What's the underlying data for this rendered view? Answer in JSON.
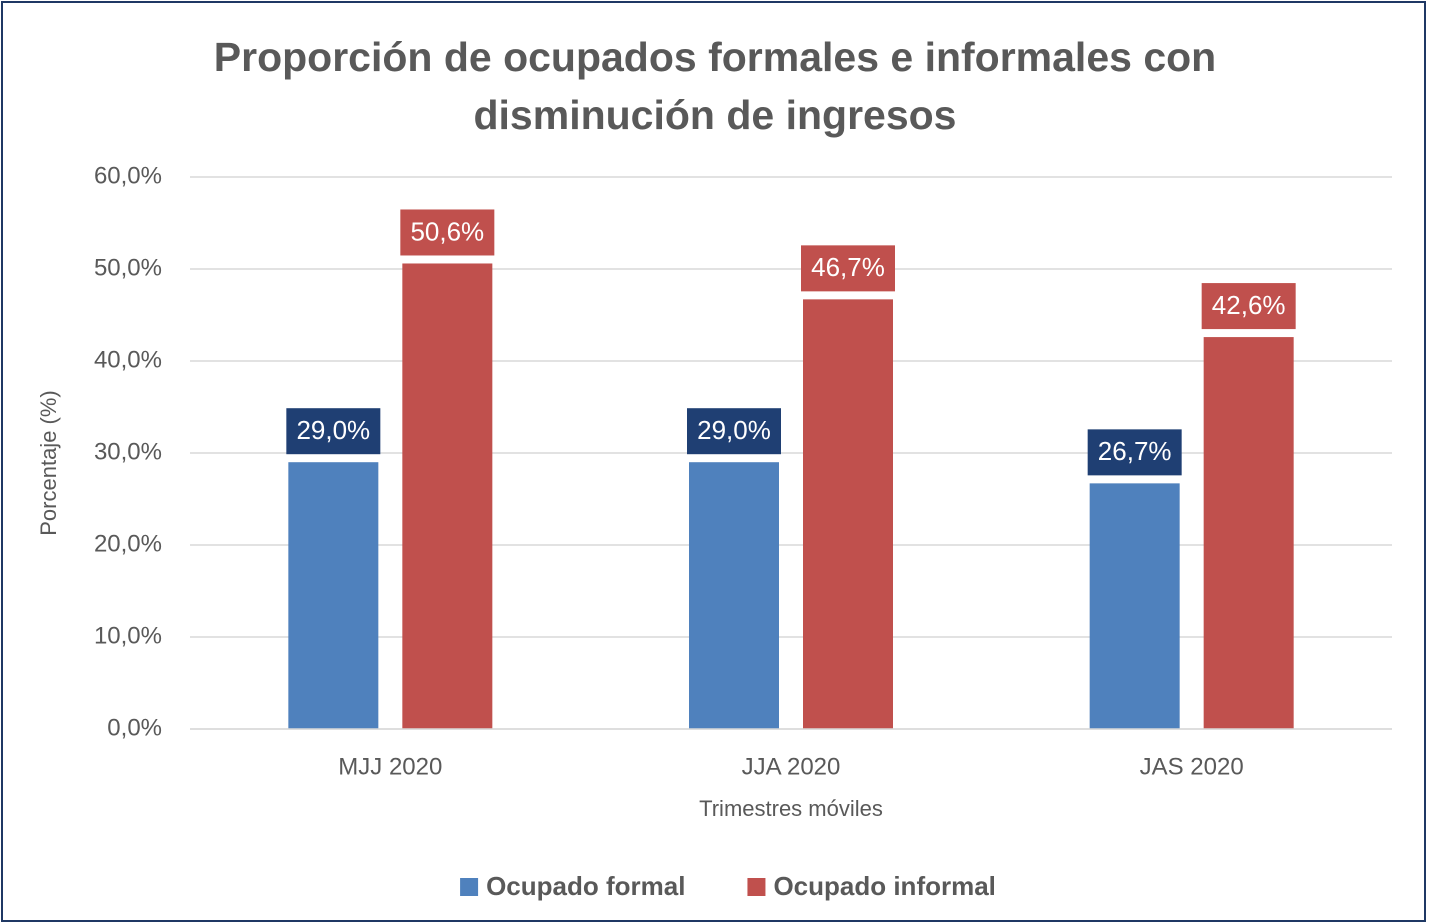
{
  "chart_data": {
    "type": "bar",
    "title": "Proporción de ocupados formales e informales con disminución de ingresos",
    "x_label": "Trimestres móviles",
    "y_label": "Porcentaje (%)",
    "categories": [
      "MJJ 2020",
      "JJA 2020",
      "JAS 2020"
    ],
    "series": [
      {
        "name": "Ocupado formal",
        "color": "#4f81bd",
        "label_color": "#1f3f73",
        "values": [
          29.0,
          29.0,
          26.7
        ],
        "value_labels": [
          "29,0%",
          "29,0%",
          "26,7%"
        ]
      },
      {
        "name": "Ocupado informal",
        "color": "#c0504d",
        "label_color": "#c0504d",
        "values": [
          50.6,
          46.7,
          42.6
        ],
        "value_labels": [
          "50,6%",
          "46,7%",
          "42,6%"
        ]
      }
    ],
    "ylim": [
      0,
      60
    ],
    "yticks": [
      {
        "value": 0,
        "label": "0,0%"
      },
      {
        "value": 10,
        "label": "10,0%"
      },
      {
        "value": 20,
        "label": "20,0%"
      },
      {
        "value": 30,
        "label": "30,0%"
      },
      {
        "value": 40,
        "label": "40,0%"
      },
      {
        "value": 50,
        "label": "50,0%"
      },
      {
        "value": 60,
        "label": "60,0%"
      }
    ],
    "grid": true,
    "legend": "bottom"
  }
}
